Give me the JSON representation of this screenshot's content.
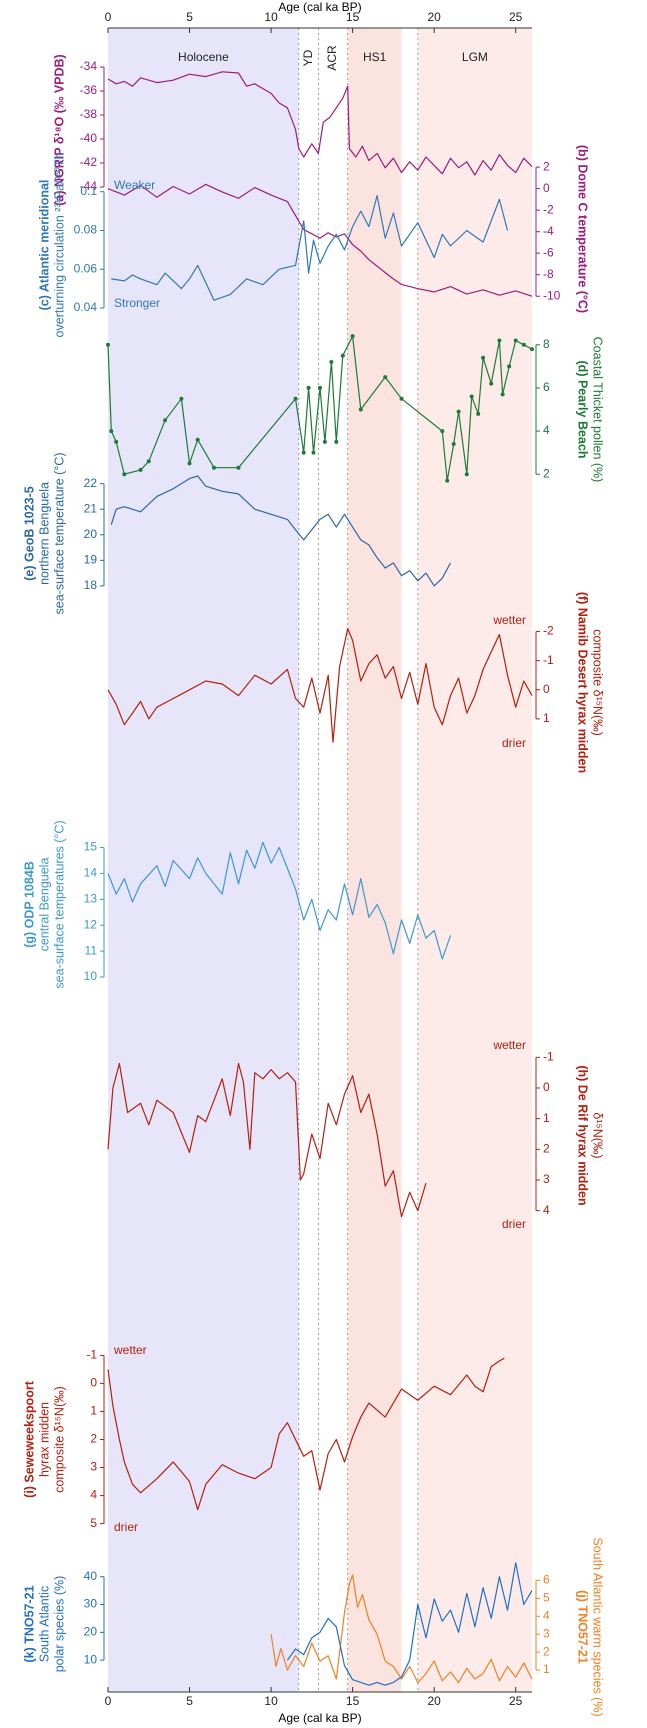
{
  "chart_data": {
    "type": "multi-panel",
    "xlabel": "Age (cal ka BP)",
    "xlim": [
      0,
      26
    ],
    "xticks": [
      0,
      5,
      10,
      15,
      20,
      25
    ],
    "periods": [
      {
        "label": "Holocene",
        "start": 0,
        "end": 11.7,
        "color": "#c9c6f2"
      },
      {
        "label": "YD",
        "start": 11.7,
        "end": 12.9
      },
      {
        "label": "ACR",
        "start": 12.9,
        "end": 14.7
      },
      {
        "label": "HS1",
        "start": 14.7,
        "end": 18,
        "color": "#f7c0bb"
      },
      {
        "label": "LGM",
        "start": 19,
        "end": 26,
        "color": "#f9d3cf"
      }
    ],
    "panels": [
      {
        "type": "line",
        "side": "left",
        "color": "#9c1d7f",
        "ylabel": [
          "(a) NGRIP δ¹⁸O (‰ VPDB)"
        ],
        "ylim": [
          -45.5,
          -33
        ],
        "yticks": [
          -44,
          -42,
          -40,
          -38,
          -36,
          -34
        ],
        "x": [
          0,
          0.5,
          1,
          1.5,
          2,
          3,
          4,
          5,
          6,
          7,
          8,
          8.5,
          9,
          9.5,
          10,
          10.5,
          11,
          11.5,
          11.7,
          12,
          12.5,
          12.9,
          13.2,
          13.6,
          14,
          14.4,
          14.7,
          14.8,
          15.2,
          15.6,
          16,
          16.5,
          17,
          17.5,
          18,
          18.5,
          19,
          19.5,
          20,
          20.5,
          21,
          21.5,
          22,
          22.5,
          23,
          23.5,
          24,
          24.5,
          25,
          25.5,
          26
        ],
        "values": [
          -35,
          -35.4,
          -35.2,
          -35.6,
          -34.9,
          -35.3,
          -35.1,
          -34.6,
          -34.8,
          -34.4,
          -34.5,
          -35.6,
          -35.4,
          -35.8,
          -36.2,
          -37,
          -37.4,
          -39.2,
          -40.8,
          -41.5,
          -40.4,
          -41.2,
          -38.6,
          -38.2,
          -37.4,
          -36.6,
          -35.6,
          -40.8,
          -41.5,
          -40.6,
          -41.8,
          -41.2,
          -42.4,
          -41.6,
          -42.8,
          -41.9,
          -42.6,
          -41.5,
          -42.2,
          -42.9,
          -41.6,
          -42.4,
          -41.9,
          -43,
          -41.8,
          -42.6,
          -41.3,
          -42.2,
          -42.8,
          -41.6,
          -42.3
        ]
      },
      {
        "type": "line",
        "side": "right",
        "color": "#9c1d7f",
        "ylabel": [
          "(b) Dome C temperature (°C)"
        ],
        "ylim": [
          -11,
          3.5
        ],
        "yticks": [
          -10,
          -8,
          -6,
          -4,
          -2,
          0,
          2
        ],
        "x": [
          0,
          1,
          2,
          3,
          4,
          5,
          6,
          7,
          8,
          9,
          10,
          11,
          11.5,
          12,
          12.5,
          13,
          13.5,
          14,
          14.5,
          15,
          15.5,
          16,
          16.5,
          17,
          17.5,
          18,
          19,
          20,
          21,
          22,
          23,
          24,
          25,
          26
        ],
        "values": [
          0,
          -0.6,
          0.3,
          -0.8,
          0.2,
          -0.5,
          0.4,
          -0.3,
          -0.9,
          0.1,
          -0.6,
          -1.2,
          -2.5,
          -3.8,
          -4.2,
          -4.6,
          -4.1,
          -4.5,
          -4.2,
          -5.2,
          -5.8,
          -6.6,
          -7.2,
          -7.8,
          -8.4,
          -8.9,
          -9.3,
          -9.6,
          -9.1,
          -9.8,
          -9.4,
          -9.9,
          -9.5,
          -10
        ]
      },
      {
        "type": "line",
        "side": "left",
        "color": "#2f79b5",
        "ylabel": [
          "(c) Atlantic meridional",
          "overturning circulation ²³¹Pa/²³⁰Th"
        ],
        "annotations": [
          "Weaker",
          "Stronger"
        ],
        "ylim": [
          0.04,
          0.105
        ],
        "yticks": [
          0.04,
          0.06,
          0.08,
          0.1
        ],
        "x": [
          0.2,
          1,
          1.5,
          2,
          3,
          3.5,
          4.5,
          5,
          5.5,
          6.5,
          7.5,
          8.5,
          9.5,
          10.5,
          11.5,
          12,
          12.3,
          12.6,
          13,
          13.5,
          14,
          14.5,
          15,
          15.5,
          16,
          16.5,
          17,
          17.5,
          18,
          19,
          20,
          20.5,
          21,
          22,
          23,
          24,
          24.5
        ],
        "values": [
          0.055,
          0.054,
          0.057,
          0.055,
          0.052,
          0.058,
          0.05,
          0.055,
          0.062,
          0.044,
          0.047,
          0.055,
          0.052,
          0.06,
          0.062,
          0.085,
          0.058,
          0.075,
          0.063,
          0.072,
          0.078,
          0.07,
          0.082,
          0.09,
          0.082,
          0.098,
          0.076,
          0.089,
          0.072,
          0.084,
          0.066,
          0.078,
          0.072,
          0.08,
          0.074,
          0.096,
          0.08
        ]
      },
      {
        "type": "line",
        "side": "right",
        "color": "#1e7b36",
        "markers": true,
        "ylabel": [
          "(d) Pearly Beach",
          "Coastal Thicket pollen (%)"
        ],
        "ylim": [
          1.5,
          8.5
        ],
        "yticks": [
          2,
          4,
          6,
          8
        ],
        "x": [
          0,
          0.2,
          0.5,
          1,
          2,
          2.5,
          3.5,
          4.5,
          5,
          5.5,
          6.5,
          8,
          11.5,
          12,
          12.3,
          12.6,
          13,
          13.3,
          13.7,
          14,
          14.4,
          15,
          15.5,
          17,
          18,
          20.5,
          20.8,
          21.2,
          21.5,
          22,
          22.3,
          22.7,
          23,
          23.5,
          24,
          24.2,
          24.6,
          25,
          25.5,
          26
        ],
        "values": [
          8,
          4,
          3.5,
          2,
          2.2,
          2.6,
          4.5,
          5.5,
          2.5,
          3.6,
          2.3,
          2.3,
          5.5,
          3,
          6,
          3,
          6,
          3.5,
          7.2,
          3.5,
          7.5,
          8.4,
          5,
          6.5,
          5.5,
          4,
          1.7,
          3.4,
          4.9,
          2,
          5.6,
          4.8,
          7.4,
          6.2,
          8.2,
          5.7,
          7,
          8.2,
          8,
          7.8
        ]
      },
      {
        "type": "line",
        "side": "left",
        "color": "#2a68a8",
        "ylabel": [
          "(e) GeoB 1023-5",
          "northern Benguela",
          "sea-surface temperature (°C)"
        ],
        "ylim": [
          17.8,
          22.3
        ],
        "yticks": [
          18,
          19,
          20,
          21,
          22
        ],
        "x": [
          0.2,
          0.5,
          1,
          2,
          3,
          4,
          5,
          5.5,
          6,
          7,
          8,
          9,
          10,
          11,
          11.5,
          12,
          12.5,
          13,
          13.5,
          14,
          14.5,
          15,
          15.5,
          16,
          16.5,
          17,
          17.5,
          18,
          18.5,
          19,
          19.5,
          20,
          20.5,
          21
        ],
        "values": [
          20.4,
          21,
          21.1,
          20.9,
          21.5,
          21.8,
          22.2,
          22.3,
          21.9,
          21.7,
          21.6,
          21,
          20.8,
          20.6,
          20.2,
          19.8,
          20.2,
          20.6,
          20.8,
          20.3,
          20.8,
          20.3,
          19.8,
          19.6,
          19.1,
          18.7,
          18.9,
          18.4,
          18.6,
          18.2,
          18.5,
          18,
          18.3,
          18.9
        ]
      },
      {
        "type": "line",
        "side": "right",
        "color": "#b3200f",
        "ylabel": [
          "(f) Namib Desert hyrax midden",
          "composite δ¹⁵N(‰)"
        ],
        "annotations": [
          "wetter",
          "drier"
        ],
        "ylim": [
          2,
          -2.5
        ],
        "yticks": [
          1,
          0,
          -1,
          -2
        ],
        "x": [
          0,
          0.5,
          1,
          1.5,
          2,
          2.5,
          3,
          4,
          5,
          6,
          7,
          8,
          9,
          10,
          11,
          11.5,
          12,
          12.5,
          13,
          13.5,
          13.8,
          14.2,
          14.7,
          15,
          15.5,
          16,
          16.5,
          17,
          17.5,
          18,
          18.5,
          19,
          19.5,
          20,
          20.5,
          21,
          21.5,
          22,
          22.5,
          23,
          23.5,
          24,
          24.5,
          25,
          25.5,
          26
        ],
        "values": [
          0,
          0.5,
          1.2,
          0.8,
          0.4,
          1,
          0.6,
          0.3,
          0,
          -0.3,
          -0.2,
          0.2,
          -0.5,
          -0.2,
          -0.7,
          0.3,
          0.6,
          -0.4,
          0.8,
          -0.5,
          1.8,
          -0.8,
          -2.1,
          -1.7,
          -0.3,
          -0.9,
          -1.2,
          -0.4,
          -0.8,
          0.3,
          -0.6,
          0.5,
          -0.9,
          0.6,
          1.2,
          0.2,
          -0.4,
          0.8,
          0.2,
          -0.7,
          -1.3,
          -1.9,
          -0.5,
          0.6,
          -0.3,
          0.2
        ]
      },
      {
        "type": "line",
        "side": "left",
        "color": "#3c9ad0",
        "ylabel": [
          "(g) ODP 1084B",
          "central Benguela",
          "sea-surface temperatures (°C)"
        ],
        "ylim": [
          10,
          15.6
        ],
        "yticks": [
          10,
          11,
          12,
          13,
          14,
          15
        ],
        "x": [
          0,
          0.5,
          1,
          1.5,
          2,
          3,
          3.5,
          4,
          5,
          5.5,
          6,
          7,
          7.5,
          8,
          8.5,
          9,
          9.5,
          10,
          10.5,
          11,
          11.5,
          12,
          12.5,
          13,
          13.5,
          14,
          14.5,
          15,
          15.5,
          16,
          16.5,
          17,
          17.5,
          18,
          18.5,
          19,
          19.5,
          20,
          20.5,
          21
        ],
        "values": [
          14,
          13.2,
          13.8,
          12.9,
          13.6,
          14.3,
          13.5,
          14.5,
          13.8,
          14.6,
          14,
          13.2,
          14.8,
          13.6,
          14.9,
          14.2,
          15.2,
          14.4,
          15,
          14.2,
          13.4,
          12.2,
          13,
          11.8,
          12.6,
          12.2,
          13.6,
          12.4,
          13.8,
          12.3,
          12.8,
          12.1,
          10.9,
          12.2,
          11.3,
          12.4,
          11.5,
          11.8,
          10.7,
          11.6
        ]
      },
      {
        "type": "line",
        "side": "right",
        "color": "#b3200f",
        "ylabel": [
          "(h) De Rif hyrax midden",
          "δ¹⁵N(‰)"
        ],
        "annotations": [
          "wetter",
          "drier"
        ],
        "ylim": [
          4.6,
          -1.5
        ],
        "yticks": [
          4,
          3,
          2,
          1,
          0,
          -1
        ],
        "x": [
          0,
          0.3,
          0.7,
          1.2,
          2,
          2.5,
          3,
          4,
          5,
          5.5,
          6,
          7,
          7.5,
          8,
          8.3,
          8.7,
          9,
          9.5,
          10,
          10.5,
          11,
          11.5,
          11.8,
          12,
          12.5,
          13,
          13.5,
          14,
          14.5,
          15,
          15.5,
          16,
          16.5,
          17,
          17.5,
          18,
          18.5,
          19,
          19.5
        ],
        "values": [
          2,
          0,
          -0.8,
          0.8,
          0.5,
          1.2,
          0.4,
          0.8,
          2.1,
          0.9,
          1.1,
          -0.3,
          0.9,
          -0.8,
          -0.2,
          2,
          -0.5,
          -0.3,
          -0.6,
          -0.3,
          -0.5,
          -0.2,
          3,
          2.8,
          1.5,
          2.3,
          0.5,
          1.2,
          0.2,
          -0.4,
          0.8,
          0.2,
          1.5,
          3.2,
          2.7,
          4.2,
          3.4,
          4,
          3.1
        ]
      },
      {
        "type": "line",
        "side": "left",
        "color": "#b3200f",
        "ylabel": [
          "(i) Seweweekspoort",
          "hyrax midden",
          "composite δ¹⁵N(‰)"
        ],
        "annotations": [
          "wetter",
          "drier"
        ],
        "ylim": [
          5.3,
          -1.3
        ],
        "yticks": [
          5,
          4,
          3,
          2,
          1,
          0,
          -1
        ],
        "x": [
          0,
          0.3,
          0.7,
          1,
          1.5,
          2,
          3,
          4,
          5,
          5.5,
          6,
          7,
          8,
          9,
          10,
          10.5,
          11,
          11.5,
          12,
          12.5,
          13,
          13.5,
          14,
          14.5,
          15,
          15.5,
          16,
          17,
          18,
          19,
          20,
          21,
          22,
          22.5,
          23,
          23.5,
          24,
          24.3
        ],
        "values": [
          -0.5,
          0.8,
          2,
          2.8,
          3.6,
          3.9,
          3.4,
          2.8,
          3.5,
          4.5,
          3.6,
          2.9,
          3.2,
          3.4,
          3,
          1.8,
          1.4,
          2,
          2.6,
          2.4,
          3.8,
          2.5,
          2,
          2.8,
          1.9,
          1.2,
          0.7,
          1.2,
          0.2,
          0.6,
          0.1,
          0.4,
          -0.3,
          0.1,
          0.3,
          -0.6,
          -0.8,
          -0.9
        ]
      },
      {
        "type": "line",
        "side": "right",
        "color": "#f08222",
        "ylabel": [
          "(j) TNO57-21",
          "South Atlantic warm species (%)"
        ],
        "ylim": [
          0,
          6.8
        ],
        "yticks": [
          1,
          2,
          3,
          4,
          5,
          6
        ],
        "x": [
          10,
          10.3,
          10.6,
          11,
          11.5,
          12,
          12.5,
          13,
          13.5,
          14,
          14.5,
          14.8,
          15,
          15.3,
          15.6,
          16,
          16.5,
          17,
          17.5,
          18,
          18.5,
          19,
          19.5,
          20,
          20.5,
          21,
          21.5,
          22,
          22.5,
          23,
          23.5,
          24,
          24.5,
          25,
          25.5,
          26
        ],
        "values": [
          3,
          1.2,
          2.2,
          1,
          1.8,
          1.2,
          2.5,
          1.5,
          1.8,
          0.5,
          4.2,
          5.8,
          6.3,
          4.5,
          5.2,
          3.8,
          3,
          1.5,
          1.2,
          0.5,
          1.2,
          0.3,
          0.8,
          1.5,
          0.4,
          0.9,
          0.3,
          1.1,
          0.5,
          0.8,
          1.6,
          0.4,
          1.2,
          0.6,
          1.4,
          0.5
        ]
      },
      {
        "type": "line",
        "side": "left",
        "color": "#2170c4",
        "ylabel": [
          "(k) TNO57-21",
          "South Atlantic",
          "polar species (%)"
        ],
        "ylim": [
          0,
          46
        ],
        "yticks": [
          10,
          20,
          30,
          40
        ],
        "x": [
          11,
          11.5,
          12,
          12.5,
          13,
          13.5,
          14,
          14.5,
          15,
          15.5,
          16,
          16.5,
          17,
          17.5,
          18,
          18.5,
          19,
          19.5,
          20,
          20.5,
          21,
          21.5,
          22,
          22.5,
          23,
          23.5,
          24,
          24.5,
          25,
          25.5,
          26
        ],
        "values": [
          10,
          14,
          12,
          18,
          20,
          25,
          22,
          8,
          3,
          2,
          1,
          2,
          1,
          2,
          4,
          10,
          30,
          18,
          32,
          24,
          28,
          20,
          34,
          22,
          36,
          25,
          40,
          28,
          45,
          30,
          35
        ]
      }
    ]
  }
}
